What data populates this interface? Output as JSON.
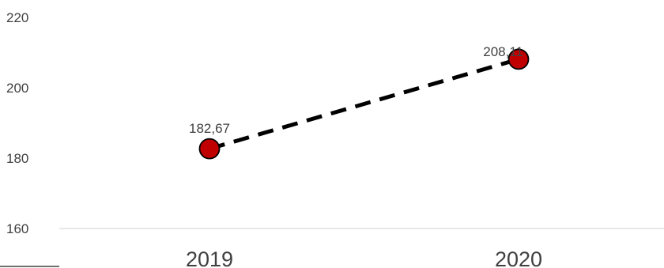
{
  "chart_data": {
    "type": "line",
    "title": "",
    "xlabel": "",
    "ylabel": "",
    "categories": [
      "2019",
      "2020"
    ],
    "series": [
      {
        "values": [
          182.67,
          208.11
        ],
        "data_labels": [
          "182,67",
          "208,11"
        ],
        "line_style": "dashed",
        "line_color": "#000000",
        "marker_color": "#c00000",
        "marker_edge_color": "#000000"
      }
    ],
    "ylim": [
      160,
      220
    ],
    "y_ticks": [
      "160",
      "180",
      "200",
      "220"
    ],
    "grid": false,
    "legend": "none"
  }
}
